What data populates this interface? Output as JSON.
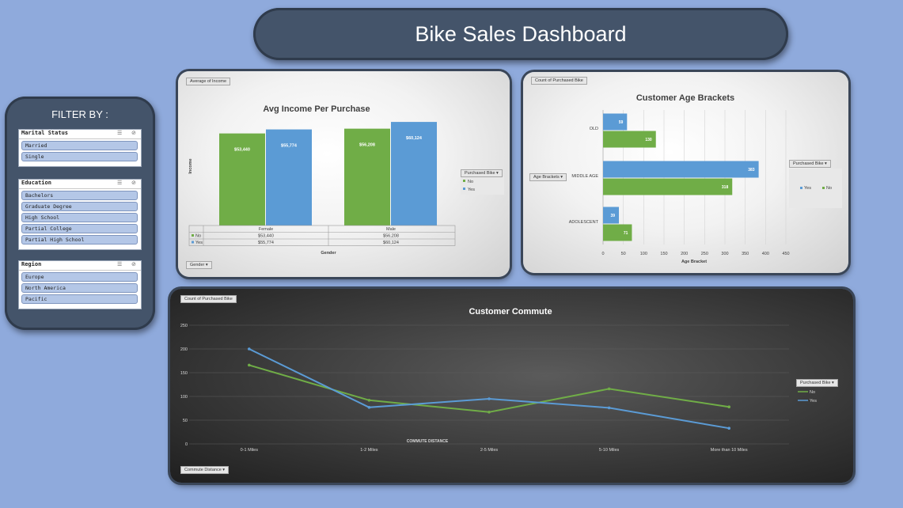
{
  "dashboard": {
    "title": "Bike Sales Dashboard"
  },
  "filters": {
    "title": "FILTER BY :",
    "slicers": [
      {
        "label": "Marital Status",
        "items": [
          "Married",
          "Single"
        ]
      },
      {
        "label": "Education",
        "items": [
          "Bachelors",
          "Graduate Degree",
          "High School",
          "Partial College",
          "Partial High School"
        ]
      },
      {
        "label": "Region",
        "items": [
          "Europe",
          "North America",
          "Pacific"
        ]
      }
    ]
  },
  "income_panel": {
    "field_button": "Average of Income",
    "legend_button": "Purchased Bike",
    "axis_button": "Gender"
  },
  "age_panel": {
    "field_button": "Count of Purchased Bike",
    "row_button": "Age Brackets",
    "legend_button": "Purchased Bike"
  },
  "commute_panel": {
    "field_button": "Count of Purchased Bike",
    "axis_button": "Commute Distance",
    "legend_button": "Purchased Bike"
  },
  "colors": {
    "no": "#70ad47",
    "yes": "#5b9bd5",
    "panel_dark": "#44546a",
    "background": "#8faadc"
  },
  "chart_data": [
    {
      "type": "bar",
      "title": "Avg Income Per Purchase",
      "xlabel": "Gender",
      "ylabel": "Income",
      "categories": [
        "Female",
        "Male"
      ],
      "series": [
        {
          "name": "No",
          "values": [
            53440,
            56208
          ],
          "labels": [
            "$53,440",
            "$56,208"
          ]
        },
        {
          "name": "Yes",
          "values": [
            55774,
            60124
          ],
          "labels": [
            "$55,774",
            "$60,124"
          ]
        }
      ],
      "ylim": [
        0,
        62000
      ],
      "data_table": true,
      "legend": "right"
    },
    {
      "type": "bar",
      "orientation": "horizontal",
      "title": "Customer Age Brackets",
      "xlabel": "Age Bracket",
      "categories": [
        "OLD",
        "MIDDLE AGE",
        "ADOLESCENT"
      ],
      "series": [
        {
          "name": "Yes",
          "values": [
            59,
            383,
            39
          ]
        },
        {
          "name": "No",
          "values": [
            130,
            318,
            71
          ]
        }
      ],
      "xlim": [
        0,
        450
      ],
      "xticks": [
        "0",
        "50",
        "100",
        "150",
        "200",
        "250",
        "300",
        "350",
        "400",
        "450"
      ],
      "grid": true,
      "legend": "right"
    },
    {
      "type": "line",
      "title": "Customer Commute",
      "xlabel": "COMMUTE DISTANCE",
      "categories": [
        "0-1 Miles",
        "1-2 Miles",
        "2-5 Miles",
        "5-10 Miles",
        "More than 10 Miles"
      ],
      "series": [
        {
          "name": "No",
          "values": [
            166,
            92,
            67,
            116,
            78
          ]
        },
        {
          "name": "Yes",
          "values": [
            200,
            77,
            95,
            76,
            33
          ]
        }
      ],
      "ylim": [
        0,
        250
      ],
      "yticks": [
        "0",
        "50",
        "100",
        "150",
        "200",
        "250"
      ],
      "grid": true,
      "legend": "right"
    }
  ]
}
